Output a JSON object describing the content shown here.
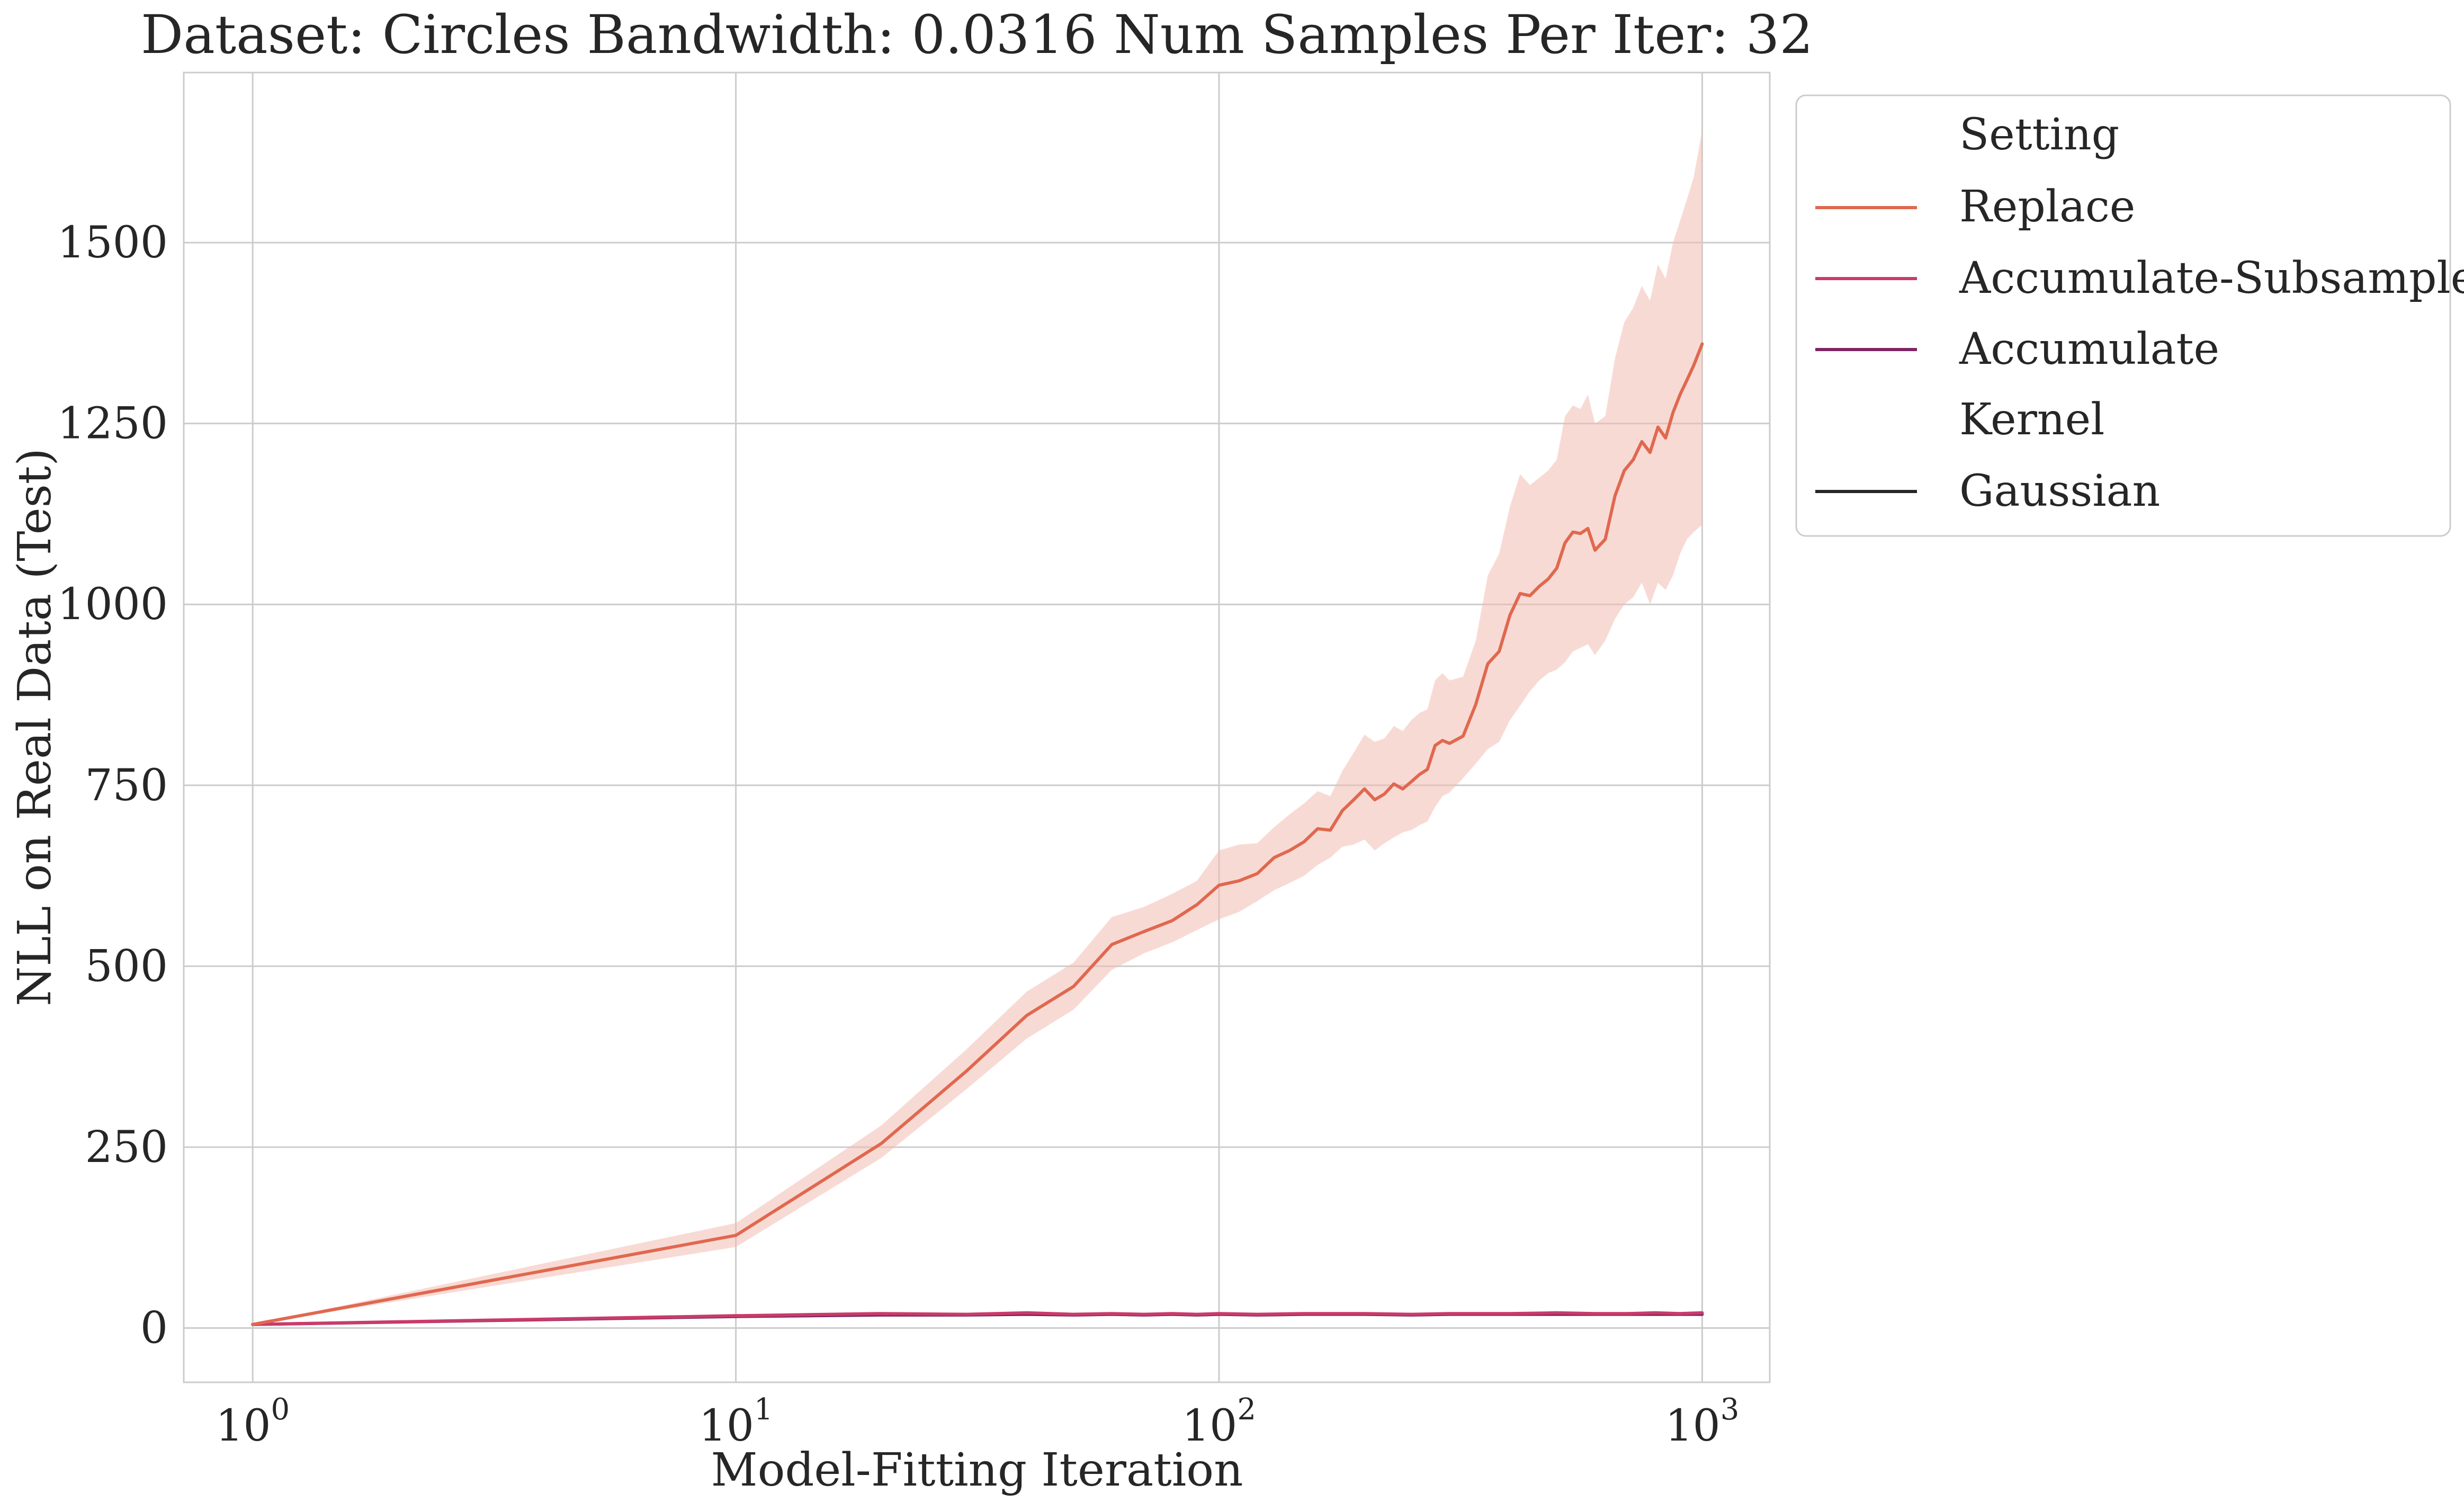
{
  "chart_data": {
    "type": "line",
    "title": "Dataset: Circles Bandwidth: 0.0316 Num Samples Per Iter: 32",
    "xlabel": "Model-Fitting Iteration",
    "ylabel": "NLL on Real Data (Test)",
    "x_scale": "log",
    "xlim": [
      0.72,
      1380
    ],
    "ylim": [
      -75,
      1735
    ],
    "x_ticks": [
      {
        "value": 1,
        "base": "10",
        "exp": "0"
      },
      {
        "value": 10,
        "base": "10",
        "exp": "1"
      },
      {
        "value": 100,
        "base": "10",
        "exp": "2"
      },
      {
        "value": 1000,
        "base": "10",
        "exp": "3"
      }
    ],
    "y_ticks": [
      0,
      250,
      500,
      750,
      1000,
      1250,
      1500
    ],
    "grid": true,
    "legend": {
      "placement": "outside-right",
      "sections": [
        {
          "title": "Setting",
          "entries": [
            {
              "label": "Replace",
              "color": "#e0684f"
            },
            {
              "label": "Accumulate-Subsample",
              "color": "#c93b6a"
            },
            {
              "label": "Accumulate",
              "color": "#7d2461"
            }
          ]
        },
        {
          "title": "Kernel",
          "entries": [
            {
              "label": "Gaussian",
              "color": "#262626"
            }
          ]
        }
      ]
    },
    "series": [
      {
        "name": "Replace",
        "color": "#e0684f",
        "band_color": "#f3bcb0",
        "x": [
          1,
          10,
          20,
          30,
          40,
          50,
          60,
          70,
          80,
          90,
          100,
          110,
          120,
          130,
          140,
          150,
          160,
          170,
          180,
          190,
          200,
          210,
          220,
          230,
          240,
          250,
          260,
          270,
          280,
          290,
          300,
          320,
          340,
          360,
          380,
          400,
          420,
          440,
          460,
          480,
          500,
          520,
          540,
          560,
          580,
          600,
          630,
          660,
          690,
          720,
          750,
          780,
          810,
          840,
          870,
          900,
          930,
          960,
          1000
        ],
        "y": [
          5,
          128,
          255,
          355,
          432,
          472,
          530,
          548,
          563,
          585,
          612,
          618,
          628,
          650,
          660,
          672,
          690,
          688,
          715,
          730,
          745,
          730,
          738,
          752,
          745,
          755,
          765,
          772,
          805,
          812,
          808,
          818,
          862,
          918,
          935,
          985,
          1015,
          1012,
          1025,
          1035,
          1050,
          1085,
          1100,
          1098,
          1105,
          1075,
          1090,
          1150,
          1185,
          1200,
          1225,
          1210,
          1245,
          1230,
          1265,
          1290,
          1310,
          1330,
          1360
        ],
        "y_lower": [
          5,
          112,
          235,
          330,
          400,
          440,
          495,
          518,
          533,
          550,
          565,
          575,
          590,
          605,
          615,
          625,
          640,
          650,
          665,
          668,
          675,
          660,
          670,
          678,
          685,
          688,
          695,
          700,
          720,
          735,
          740,
          760,
          780,
          800,
          810,
          840,
          860,
          880,
          895,
          905,
          910,
          920,
          935,
          940,
          945,
          930,
          950,
          980,
          1000,
          1010,
          1030,
          1000,
          1030,
          1020,
          1040,
          1070,
          1090,
          1100,
          1110
        ],
        "y_upper": [
          5,
          145,
          280,
          385,
          465,
          505,
          568,
          582,
          600,
          618,
          660,
          668,
          670,
          692,
          710,
          725,
          742,
          735,
          770,
          795,
          820,
          810,
          815,
          832,
          825,
          840,
          850,
          855,
          895,
          905,
          895,
          900,
          950,
          1040,
          1070,
          1135,
          1180,
          1165,
          1175,
          1185,
          1200,
          1260,
          1275,
          1270,
          1290,
          1250,
          1260,
          1340,
          1390,
          1410,
          1440,
          1420,
          1470,
          1450,
          1500,
          1530,
          1560,
          1590,
          1655
        ]
      },
      {
        "name": "Accumulate-Subsample",
        "color": "#c93b6a",
        "x": [
          1,
          10,
          20,
          30,
          40,
          50,
          60,
          70,
          80,
          90,
          100,
          120,
          150,
          200,
          250,
          300,
          400,
          500,
          600,
          700,
          800,
          900,
          1000
        ],
        "y": [
          5,
          17,
          20,
          19,
          21,
          19,
          20,
          19,
          20,
          19,
          20,
          19,
          20,
          20,
          19,
          20,
          20,
          21,
          20,
          20,
          21,
          20,
          21
        ]
      },
      {
        "name": "Accumulate",
        "color": "#7d2461",
        "x": [
          1,
          10,
          20,
          30,
          40,
          50,
          60,
          70,
          80,
          90,
          100,
          120,
          150,
          200,
          250,
          300,
          400,
          500,
          600,
          700,
          800,
          900,
          1000
        ],
        "y": [
          5,
          16,
          18,
          18,
          19,
          18,
          19,
          18,
          19,
          18,
          19,
          18,
          19,
          19,
          18,
          19,
          19,
          19,
          19,
          19,
          19,
          19,
          19
        ]
      }
    ]
  }
}
